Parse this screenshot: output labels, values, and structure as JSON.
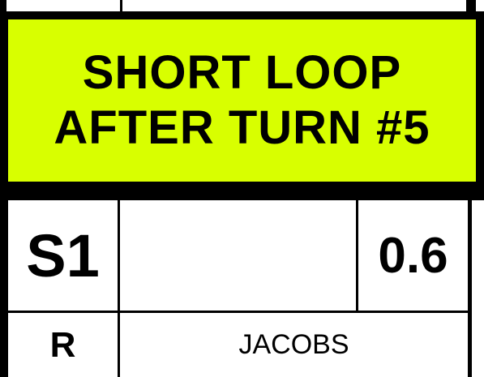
{
  "banner": {
    "line1": "SHORT LOOP",
    "line2": "AFTER TURN #5",
    "background_color": "#d8ff00"
  },
  "table": {
    "stage_code": "S1",
    "middle_cell": "",
    "distance": "0.6",
    "direction": "R",
    "name": "JACOBS"
  }
}
